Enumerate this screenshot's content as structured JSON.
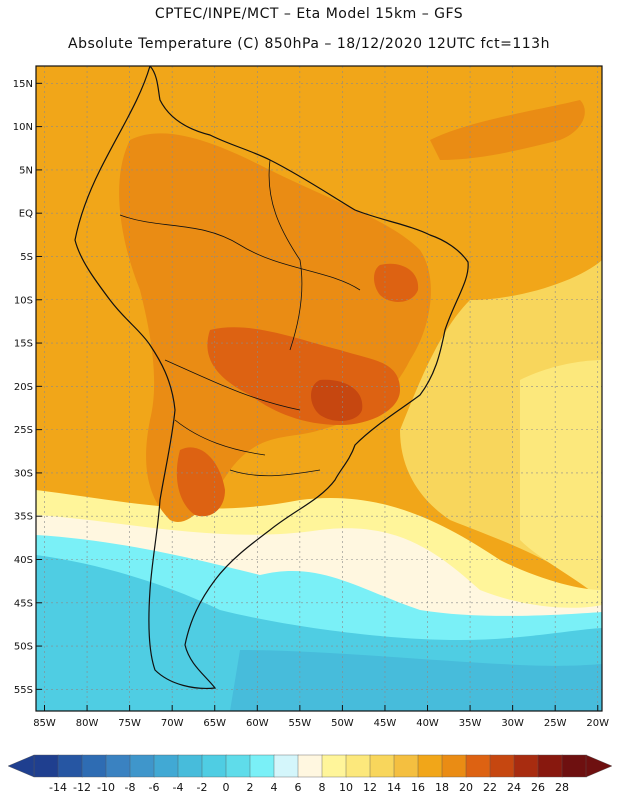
{
  "header": {
    "line1": "CPTEC/INPE/MCT –  Eta Model 15km – GFS",
    "line2": "Absolute Temperature (C) 850hPa – 18/12/2020 12UTC fct=113h"
  },
  "lat_labels": [
    "15N",
    "10N",
    "5N",
    "EQ",
    "5S",
    "10S",
    "15S",
    "20S",
    "25S",
    "30S",
    "35S",
    "40S",
    "45S",
    "50S",
    "55S"
  ],
  "lon_labels": [
    "85W",
    "80W",
    "75W",
    "70W",
    "65W",
    "60W",
    "55W",
    "50W",
    "45W",
    "40W",
    "35W",
    "30W",
    "25W",
    "20W"
  ],
  "colorbar": {
    "ticks": [
      "-14",
      "-12",
      "-10",
      "-8",
      "-6",
      "-4",
      "-2",
      "0",
      "2",
      "4",
      "6",
      "8",
      "10",
      "12",
      "14",
      "16",
      "18",
      "20",
      "22",
      "24",
      "26",
      "28"
    ],
    "colors": [
      "#1f3f8f",
      "#2656a3",
      "#2e6cb3",
      "#3a82c1",
      "#3f96cb",
      "#41a9d4",
      "#47bcdb",
      "#4fcde3",
      "#5fdcea",
      "#7af0f7",
      "#d4f6fb",
      "#fff7e0",
      "#fff59a",
      "#fce87c",
      "#f8d65c",
      "#f4bf40",
      "#f1a619",
      "#ea8c14",
      "#dd6212",
      "#c64710",
      "#a82c10",
      "#88180e",
      "#6e1010"
    ],
    "unit": "C"
  },
  "colors": {
    "warm": "#f1a619",
    "hot": "#ea8c14",
    "very_hot": "#dd6212",
    "mild": "#f8d65c",
    "cool": "#fff59a",
    "cold": "#47bcdb",
    "coast": "#111111"
  }
}
